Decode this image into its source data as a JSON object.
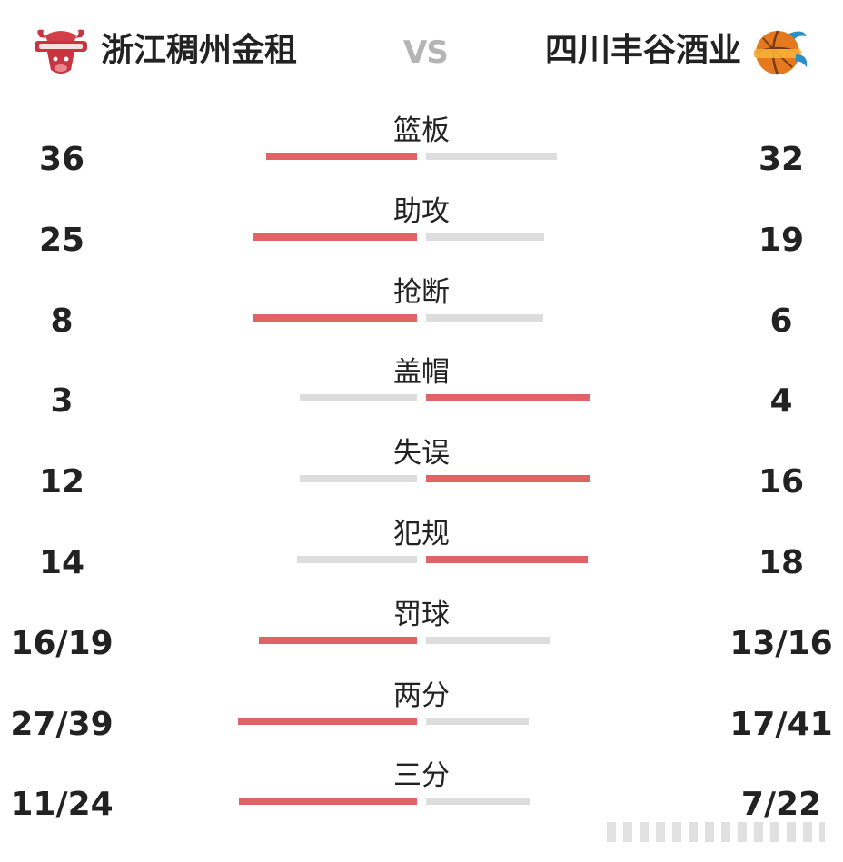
{
  "header": {
    "home_team": "浙江稠州金租",
    "away_team": "四川丰谷酒业",
    "vs_label": "VS"
  },
  "colors": {
    "accent_bar": "#e06465",
    "neutral_bar": "#dddddd",
    "vs_text": "#b4b4b4",
    "home_logo": "#c8343f",
    "away_logo": "#e5791f"
  },
  "icons": {
    "home_logo": "bull-logo-icon",
    "away_logo": "basketball-logo-icon"
  },
  "stats": [
    {
      "label": "篮板",
      "home": "36",
      "away": "32",
      "home_share": 0.529,
      "away_share": 0.471,
      "leader": "home"
    },
    {
      "label": "助攻",
      "home": "25",
      "away": "19",
      "home_share": 0.568,
      "away_share": 0.432,
      "leader": "home"
    },
    {
      "label": "抢断",
      "home": "8",
      "away": "6",
      "home_share": 0.571,
      "away_share": 0.429,
      "leader": "home"
    },
    {
      "label": "盖帽",
      "home": "3",
      "away": "4",
      "home_share": 0.429,
      "away_share": 0.571,
      "leader": "away"
    },
    {
      "label": "失误",
      "home": "12",
      "away": "16",
      "home_share": 0.429,
      "away_share": 0.571,
      "leader": "away"
    },
    {
      "label": "犯规",
      "home": "14",
      "away": "18",
      "home_share": 0.438,
      "away_share": 0.563,
      "leader": "away"
    },
    {
      "label": "罚球",
      "home": "16/19",
      "away": "13/16",
      "home_share": 0.552,
      "away_share": 0.448,
      "leader": "home"
    },
    {
      "label": "两分",
      "home": "27/39",
      "away": "17/41",
      "home_share": 0.614,
      "away_share": 0.386,
      "leader": "home"
    },
    {
      "label": "三分",
      "home": "11/24",
      "away": "7/22",
      "home_share": 0.611,
      "away_share": 0.389,
      "leader": "home"
    }
  ]
}
